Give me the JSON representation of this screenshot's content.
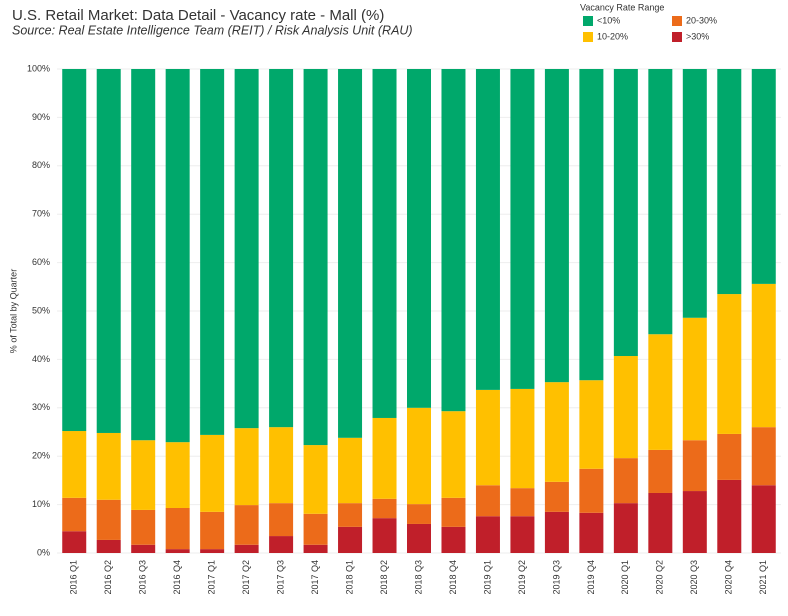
{
  "chart_data": {
    "type": "stacked-bar",
    "title": "U.S. Retail Market: Data Detail - Vacancy rate - Mall (%)",
    "subtitle": "Source: Real Estate Intelligence Team (REIT) / Risk Analysis Unit (RAU)",
    "y_label": "% of Total by Quarter",
    "legend_title": "Vacancy Rate Range",
    "categories": [
      "2016 Q1",
      "2016 Q2",
      "2016 Q3",
      "2016 Q4",
      "2017 Q1",
      "2017 Q2",
      "2017 Q3",
      "2017 Q4",
      "2018 Q1",
      "2018 Q2",
      "2018 Q3",
      "2018 Q4",
      "2019 Q1",
      "2019 Q2",
      "2019 Q3",
      "2019 Q4",
      "2020 Q1",
      "2020 Q2",
      "2020 Q3",
      "2020 Q4",
      "2021 Q1"
    ],
    "series": [
      {
        "name": ">30%",
        "color": "#c01f2a",
        "values": [
          4.5,
          2.7,
          1.7,
          0.8,
          0.8,
          1.7,
          3.5,
          1.7,
          5.4,
          7.2,
          6.0,
          5.4,
          7.6,
          7.6,
          8.5,
          8.3,
          10.3,
          12.4,
          12.8,
          15.1,
          14.0
        ]
      },
      {
        "name": "20-30%",
        "color": "#ec6b1a",
        "values": [
          6.9,
          8.3,
          7.2,
          8.5,
          7.7,
          8.2,
          6.8,
          6.4,
          4.9,
          4.0,
          4.1,
          6.0,
          6.4,
          5.8,
          6.2,
          9.1,
          9.3,
          8.9,
          10.5,
          9.5,
          12.0
        ]
      },
      {
        "name": "10-20%",
        "color": "#ffc000",
        "values": [
          13.8,
          13.8,
          14.4,
          13.6,
          15.9,
          15.9,
          15.7,
          14.2,
          13.5,
          16.7,
          19.9,
          17.9,
          19.7,
          20.5,
          20.6,
          18.3,
          21.1,
          23.9,
          25.3,
          28.9,
          29.6
        ]
      },
      {
        "name": "<10%",
        "color": "#00a86b",
        "values": [
          74.8,
          75.2,
          76.7,
          77.1,
          75.6,
          74.2,
          74.0,
          77.7,
          76.2,
          72.1,
          70.0,
          70.7,
          66.3,
          66.1,
          64.7,
          64.3,
          59.3,
          54.8,
          51.4,
          46.5,
          44.4
        ]
      }
    ],
    "ylim": [
      0,
      100
    ],
    "yticks": [
      {
        "value": 0,
        "label": "0%"
      },
      {
        "value": 10,
        "label": "10%"
      },
      {
        "value": 20,
        "label": "20%"
      },
      {
        "value": 30,
        "label": "30%"
      },
      {
        "value": 40,
        "label": "40%"
      },
      {
        "value": 50,
        "label": "50%"
      },
      {
        "value": 60,
        "label": "60%"
      },
      {
        "value": 70,
        "label": "70%"
      },
      {
        "value": 80,
        "label": "80%"
      },
      {
        "value": 90,
        "label": "90%"
      },
      {
        "value": 100,
        "label": "100%"
      }
    ],
    "grid": true
  }
}
